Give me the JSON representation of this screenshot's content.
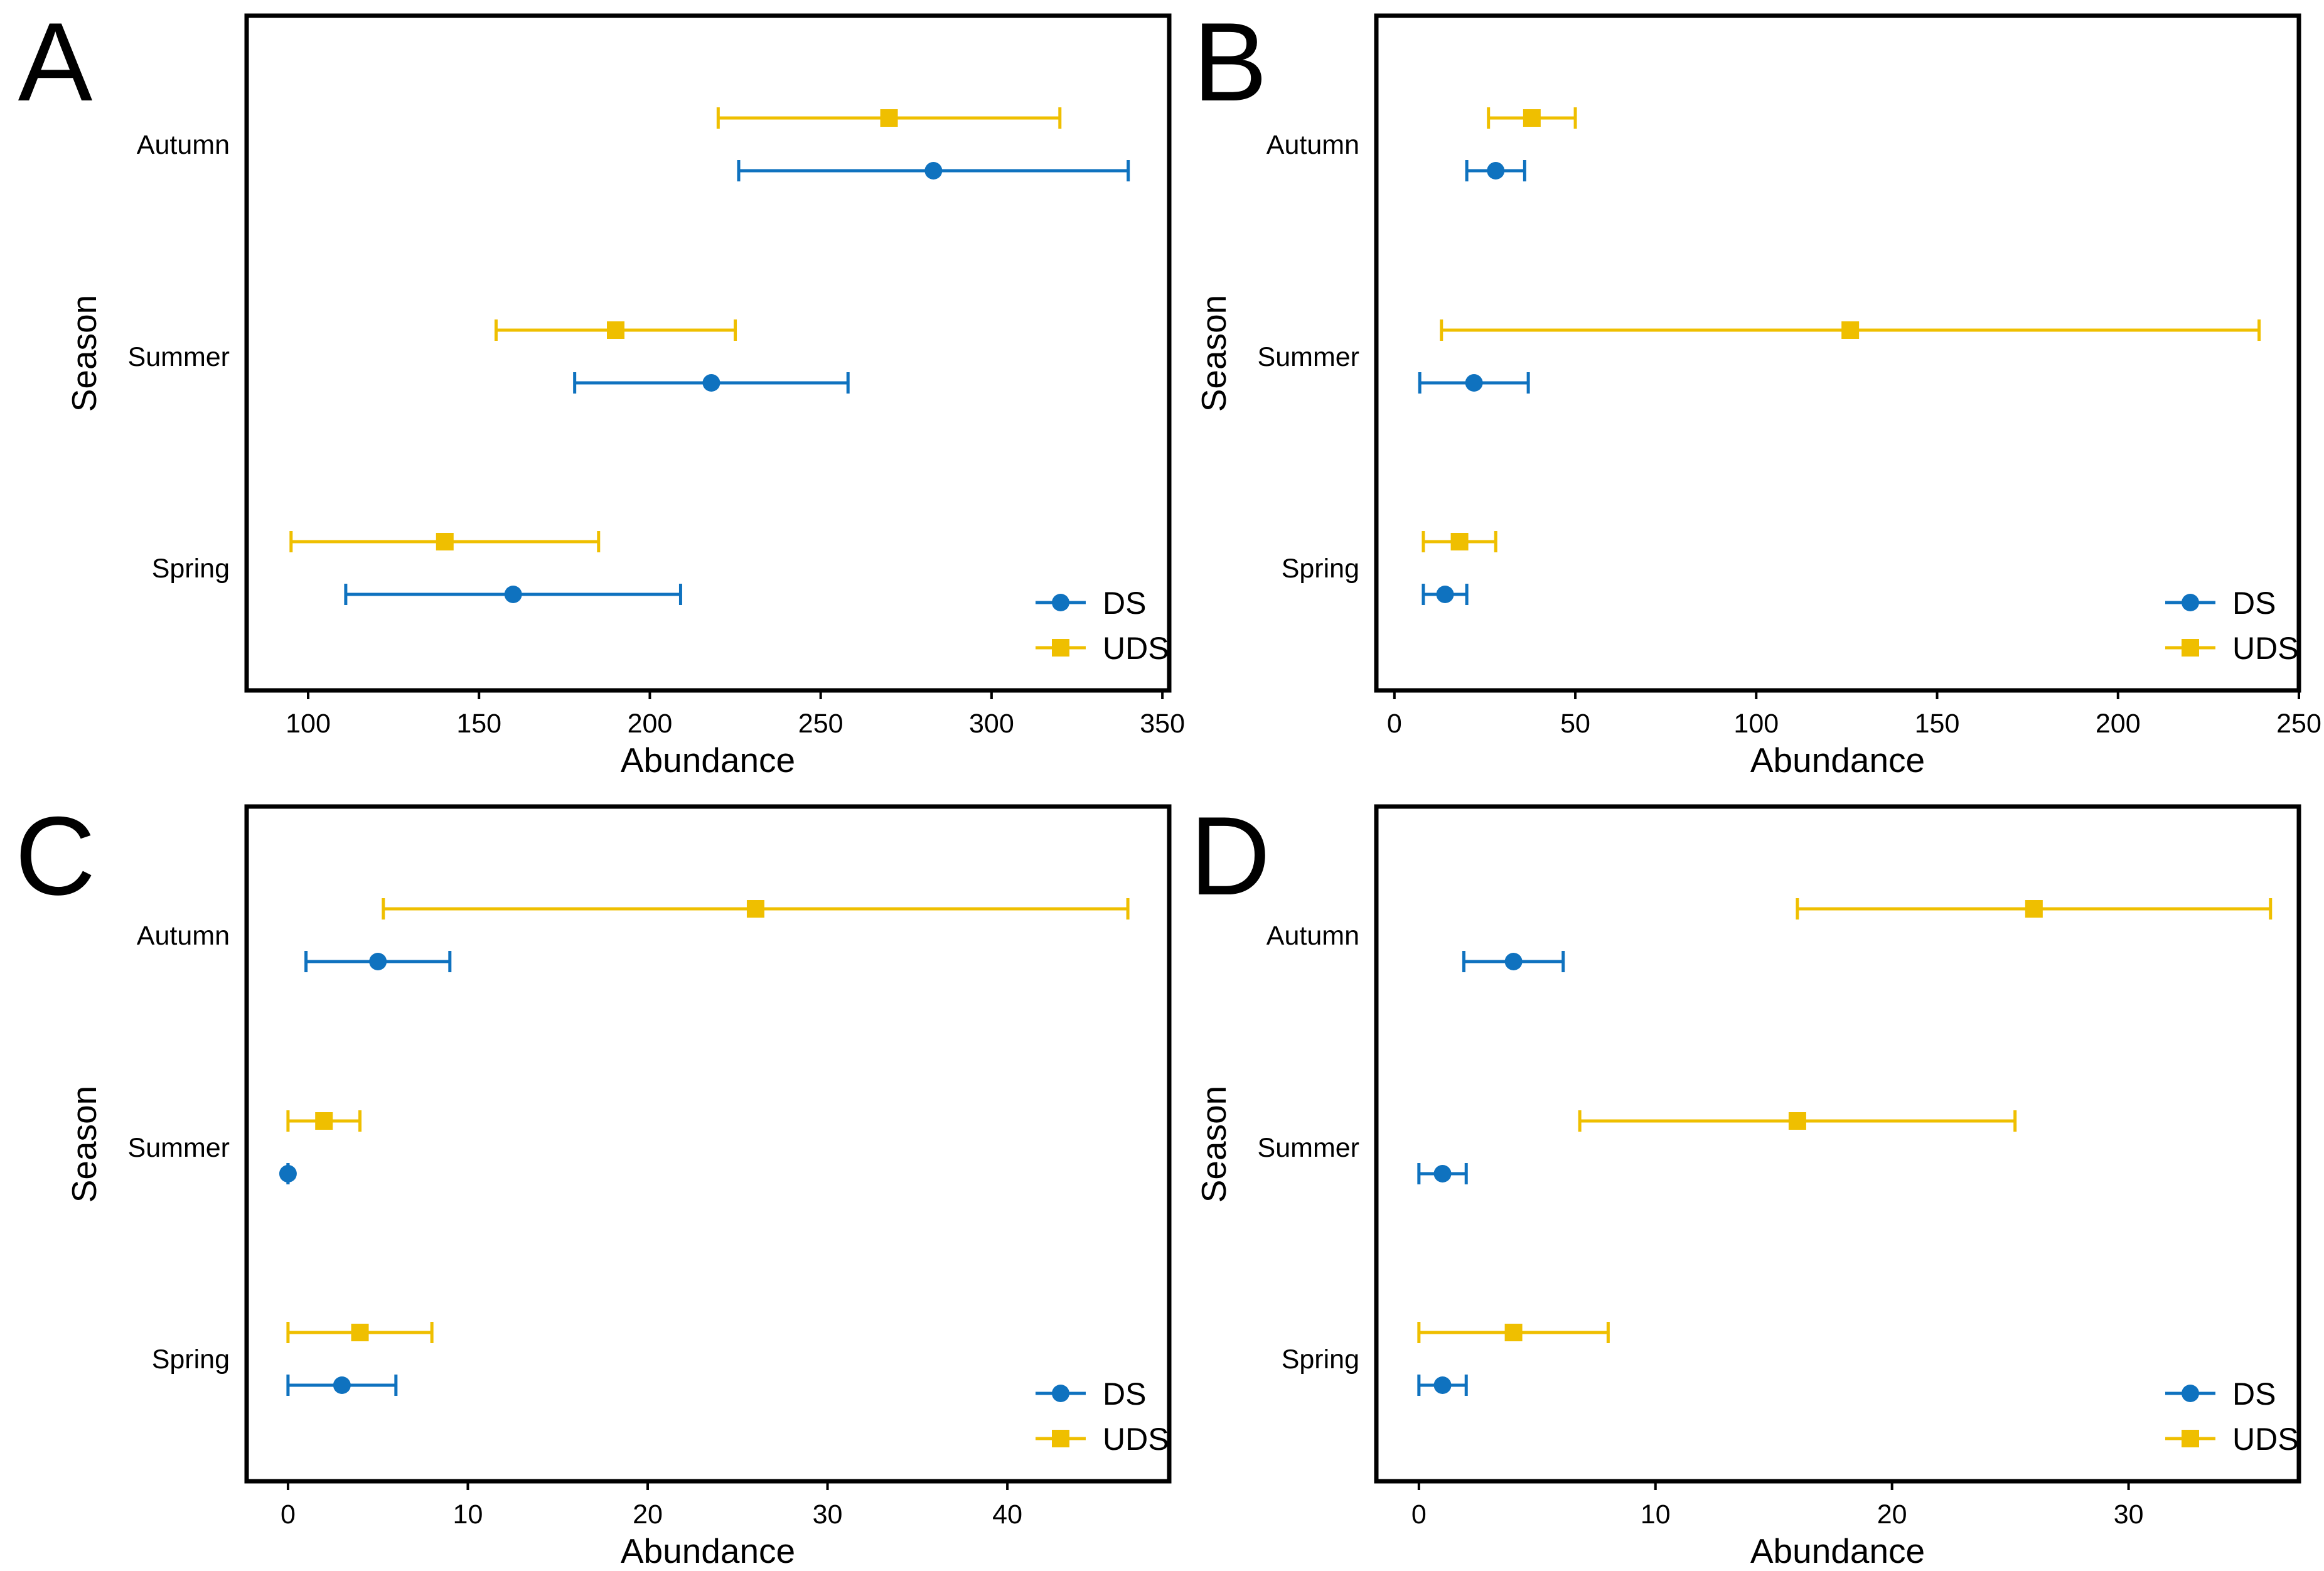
{
  "colors": {
    "DS": "#0f72bf",
    "UDS": "#efbf00",
    "axis": "#000000"
  },
  "chart_data": [
    {
      "type": "errorbar",
      "panel_label": "A",
      "xlabel": "Abundance",
      "ylabel": "Season",
      "xlim": [
        82,
        352
      ],
      "xticks": [
        100,
        150,
        200,
        250,
        300,
        350
      ],
      "categories": [
        "Autumn",
        "Summer",
        "Spring"
      ],
      "legend": [
        "DS",
        "UDS"
      ],
      "legend_position": "bottom-right",
      "series": [
        {
          "name": "DS",
          "marker": "circle",
          "values": [
            {
              "season": "Autumn",
              "mean": 283,
              "lower": 226,
              "upper": 340
            },
            {
              "season": "Summer",
              "mean": 218,
              "lower": 178,
              "upper": 258
            },
            {
              "season": "Spring",
              "mean": 160,
              "lower": 111,
              "upper": 209
            }
          ]
        },
        {
          "name": "UDS",
          "marker": "square",
          "values": [
            {
              "season": "Autumn",
              "mean": 270,
              "lower": 220,
              "upper": 320
            },
            {
              "season": "Summer",
              "mean": 190,
              "lower": 155,
              "upper": 225
            },
            {
              "season": "Spring",
              "mean": 140,
              "lower": 95,
              "upper": 185
            }
          ]
        }
      ]
    },
    {
      "type": "errorbar",
      "panel_label": "B",
      "xlabel": "Abundance",
      "ylabel": "Season",
      "xlim": [
        -5,
        250
      ],
      "xticks": [
        0,
        50,
        100,
        150,
        200,
        250
      ],
      "categories": [
        "Autumn",
        "Summer",
        "Spring"
      ],
      "legend": [
        "DS",
        "UDS"
      ],
      "legend_position": "bottom-right",
      "series": [
        {
          "name": "DS",
          "marker": "circle",
          "values": [
            {
              "season": "Autumn",
              "mean": 28,
              "lower": 20,
              "upper": 36
            },
            {
              "season": "Summer",
              "mean": 22,
              "lower": 7,
              "upper": 37
            },
            {
              "season": "Spring",
              "mean": 14,
              "lower": 8,
              "upper": 20
            }
          ]
        },
        {
          "name": "UDS",
          "marker": "square",
          "values": [
            {
              "season": "Autumn",
              "mean": 38,
              "lower": 26,
              "upper": 50
            },
            {
              "season": "Summer",
              "mean": 126,
              "lower": 13,
              "upper": 239
            },
            {
              "season": "Spring",
              "mean": 18,
              "lower": 8,
              "upper": 28
            }
          ]
        }
      ]
    },
    {
      "type": "errorbar",
      "panel_label": "C",
      "xlabel": "Abundance",
      "ylabel": "Season",
      "xlim": [
        -2.3,
        49
      ],
      "xticks": [
        0,
        10,
        20,
        30,
        40
      ],
      "categories": [
        "Autumn",
        "Summer",
        "Spring"
      ],
      "legend": [
        "DS",
        "UDS"
      ],
      "legend_position": "bottom-right",
      "series": [
        {
          "name": "DS",
          "marker": "circle",
          "values": [
            {
              "season": "Autumn",
              "mean": 5,
              "lower": 1,
              "upper": 9
            },
            {
              "season": "Summer",
              "mean": 0,
              "lower": 0,
              "upper": 0
            },
            {
              "season": "Spring",
              "mean": 3,
              "lower": 0,
              "upper": 6
            }
          ]
        },
        {
          "name": "UDS",
          "marker": "square",
          "values": [
            {
              "season": "Autumn",
              "mean": 26,
              "lower": 5.3,
              "upper": 46.7
            },
            {
              "season": "Summer",
              "mean": 2,
              "lower": 0,
              "upper": 4
            },
            {
              "season": "Spring",
              "mean": 4,
              "lower": 0,
              "upper": 8
            }
          ]
        }
      ]
    },
    {
      "type": "errorbar",
      "panel_label": "D",
      "xlabel": "Abundance",
      "ylabel": "Season",
      "xlim": [
        -1.8,
        37.2
      ],
      "xticks": [
        0,
        10,
        20,
        30
      ],
      "categories": [
        "Autumn",
        "Summer",
        "Spring"
      ],
      "legend": [
        "DS",
        "UDS"
      ],
      "legend_position": "bottom-right",
      "series": [
        {
          "name": "DS",
          "marker": "circle",
          "values": [
            {
              "season": "Autumn",
              "mean": 4,
              "lower": 1.9,
              "upper": 6.1
            },
            {
              "season": "Summer",
              "mean": 1,
              "lower": 0,
              "upper": 2
            },
            {
              "season": "Spring",
              "mean": 1,
              "lower": 0,
              "upper": 2
            }
          ]
        },
        {
          "name": "UDS",
          "marker": "square",
          "values": [
            {
              "season": "Autumn",
              "mean": 26,
              "lower": 16,
              "upper": 36
            },
            {
              "season": "Summer",
              "mean": 16,
              "lower": 6.8,
              "upper": 25.2
            },
            {
              "season": "Spring",
              "mean": 4,
              "lower": 0,
              "upper": 8
            }
          ]
        }
      ]
    }
  ]
}
